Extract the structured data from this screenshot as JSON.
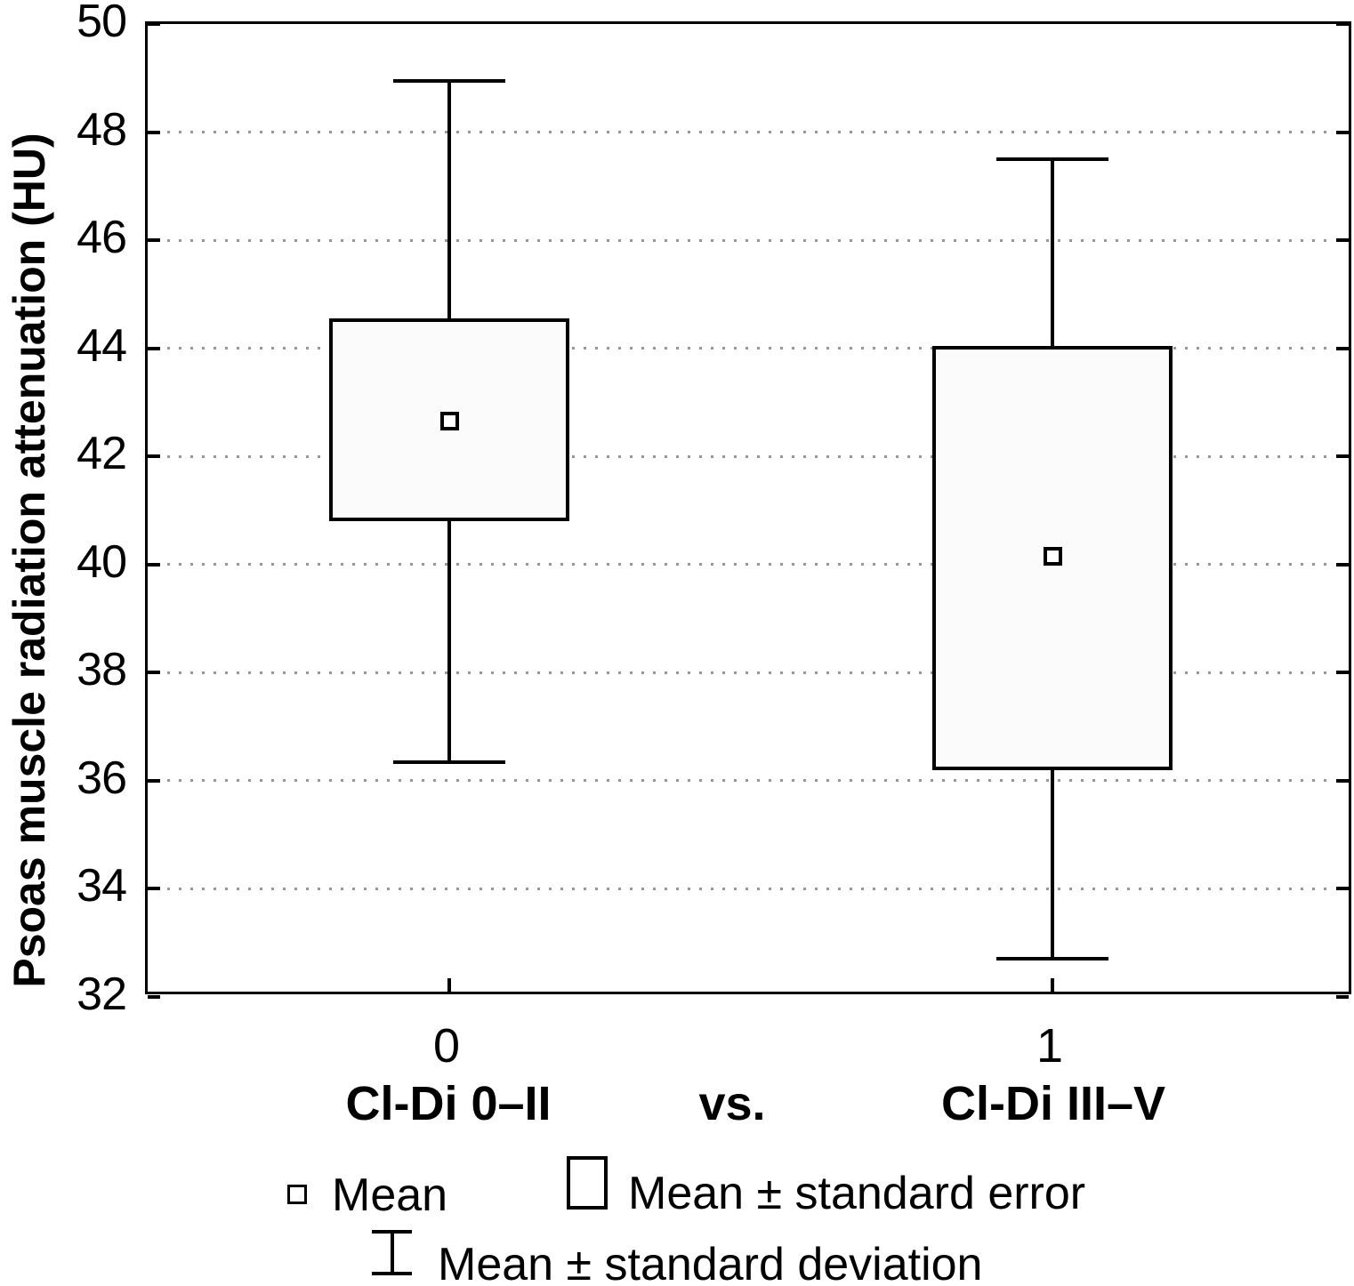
{
  "chart_data": {
    "type": "boxplot",
    "title": "",
    "ylabel": "Psoas muscle radiation attenuation (HU)",
    "xlabel": "",
    "ylim": [
      32,
      50
    ],
    "yticks": [
      50,
      48,
      46,
      44,
      42,
      40,
      38,
      36,
      34,
      32
    ],
    "gridlines": [
      48,
      46,
      44,
      42,
      40,
      38,
      36,
      34
    ],
    "grid_style": "horizontal-dotted",
    "categories": [
      "0",
      "1"
    ],
    "group_labels": [
      "Cl-Di 0–II",
      "Cl-Di III–V"
    ],
    "separator_label": "vs.",
    "series": [
      {
        "category": "0",
        "group": "Cl-Di 0–II",
        "mean": 42.65,
        "se_low": 40.8,
        "se_high": 44.55,
        "sd_low": 36.35,
        "sd_high": 48.95
      },
      {
        "category": "1",
        "group": "Cl-Di III–V",
        "mean": 40.15,
        "se_low": 36.2,
        "se_high": 44.05,
        "sd_low": 32.7,
        "sd_high": 47.5
      }
    ],
    "legend": [
      {
        "symbol": "small-square",
        "label": "Mean"
      },
      {
        "symbol": "rectangle",
        "label": "Mean ± standard error"
      },
      {
        "symbol": "error-bar",
        "label": "Mean ± standard deviation"
      }
    ],
    "legend_position": "bottom",
    "colors": {
      "stroke": "#000000",
      "box_fill": "#fbfbfb",
      "gridline": "#979797",
      "background": "#ffffff"
    }
  }
}
